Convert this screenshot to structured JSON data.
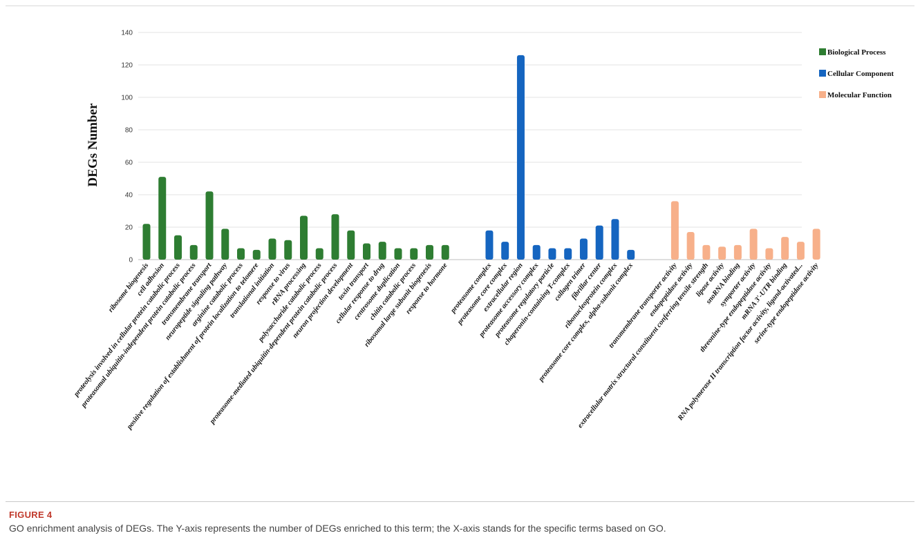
{
  "figure": {
    "label": "FIGURE 4",
    "caption": "GO enrichment analysis of DEGs. The Y-axis represents the number of DEGs enriched to this term; the X-axis stands for the specific terms based on GO."
  },
  "chart_data": {
    "type": "bar",
    "title": "",
    "xlabel": "",
    "ylabel": "DEGs Number",
    "ylim": [
      0,
      140
    ],
    "yticks": [
      0,
      20,
      40,
      60,
      80,
      100,
      120,
      140
    ],
    "grid": true,
    "legend_position": "top-right",
    "series": [
      {
        "name": "Biological Process",
        "color": "#2e7d32",
        "categories": [
          "ribosome biogenesis",
          "cell adhesion",
          "proteolysis involved in cellular protein catabolic process",
          "proteasomal ubiquitin-independent protein catabolic process",
          "transmembrane transport",
          "neuropeptide signaling pathway",
          "arginine catabolic process",
          "positive regulation of establishment of protein localization to telomere",
          "translational initiation",
          "response to virus",
          "rRNA processing",
          "polysaccharide catabolic process",
          "proteasome-mediated ubiquitin-dependent protein catabolic process",
          "neuron projection development",
          "toxin transport",
          "cellular response to drug",
          "centrosome duplication",
          "chitin catabolic process",
          "ribosomal large subunit biogenesis",
          "response to hormone"
        ],
        "values": [
          22,
          51,
          15,
          9,
          42,
          19,
          7,
          6,
          13,
          12,
          27,
          7,
          28,
          18,
          10,
          11,
          7,
          7,
          9,
          9
        ]
      },
      {
        "name": "Cellular Component",
        "color": "#1565c0",
        "categories": [
          "proteasome complex",
          "proteasome core complex",
          "extracellular region",
          "proteasome accessory complex",
          "proteasome regulatory particle",
          "chaperonin-containing T-complex",
          "collagen trimer",
          "fibrillar center",
          "ribonucleoprotein complex",
          "proteasome core complex, alpha-subunit complex"
        ],
        "values": [
          18,
          11,
          126,
          9,
          7,
          7,
          13,
          21,
          25,
          6
        ]
      },
      {
        "name": "Molecular Function",
        "color": "#f7b08a",
        "categories": [
          "transmembrane transporter activity",
          "endopeptidase activity",
          "extracellular matrix structural constituent conferring tensile strength",
          "lipase activity",
          "snoRNA binding",
          "symporter activity",
          "threonine-type endopeptidase activity",
          "mRNA 3'-UTR binding",
          "RNA polymerase II transcription factor activity, ligand-activated...",
          "serine-type endopeptidase activity"
        ],
        "values": [
          36,
          17,
          9,
          8,
          9,
          19,
          7,
          14,
          11,
          19
        ]
      }
    ]
  }
}
